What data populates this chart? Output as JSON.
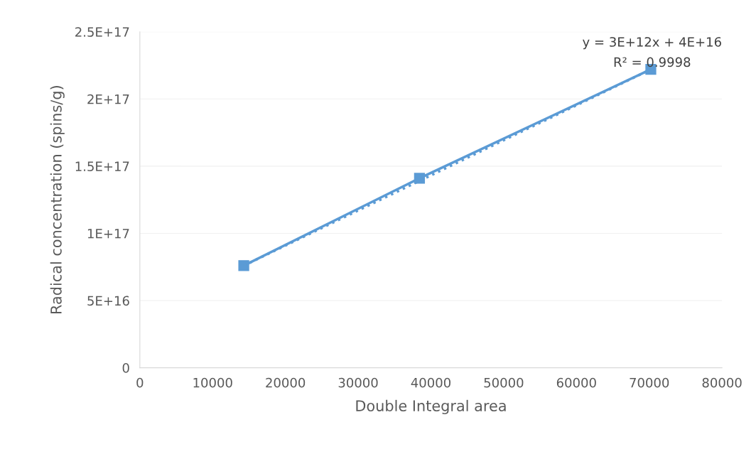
{
  "chart_data": {
    "type": "line",
    "xlabel": "Double Integral area",
    "ylabel": "Radical concentration (spins/g)",
    "x": [
      14280,
      38430,
      70220
    ],
    "series": [
      {
        "color": "#5b9bd5",
        "values": [
          7.6e+16,
          1.41e+17,
          2.22e+17
        ],
        "marker": "square",
        "line_style": "solid"
      },
      {
        "type": "line",
        "color": "#5b9bd5",
        "x": [
          14280,
          70220
        ],
        "values": [
          7.6e+16,
          2.22e+17
        ],
        "marker": "none",
        "line_style": "dotted"
      }
    ],
    "annotations": [
      "y = 3E+12x + 4E+16",
      "R² = 0.9998"
    ],
    "xlim": [
      0,
      80000
    ],
    "xticks": [
      0,
      10000,
      20000,
      30000,
      40000,
      50000,
      60000,
      70000,
      80000
    ],
    "ylim": [
      0,
      2.5e+17
    ],
    "yticks": [
      0,
      {
        "value": 5e+16,
        "label": "5E+16"
      },
      {
        "value": 1e+17,
        "label": "1E+17"
      },
      {
        "value": 1.5e+17,
        "label": "1.5E+17"
      },
      {
        "value": 2e+17,
        "label": "2E+17"
      },
      {
        "value": 2.5e+17,
        "label": "2.5E+17"
      }
    ],
    "grid": "y",
    "legend": false
  }
}
